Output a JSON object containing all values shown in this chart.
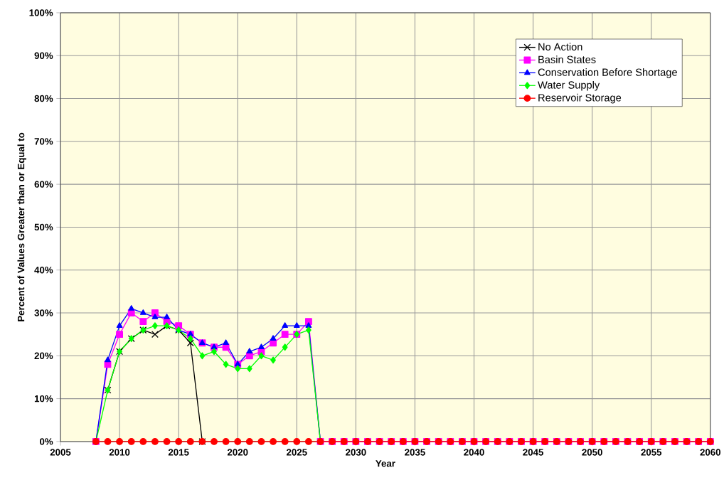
{
  "chart_data": {
    "type": "line",
    "xlabel": "Year",
    "ylabel": "Percent of Values Greater than or Equal to",
    "x": [
      2008,
      2009,
      2010,
      2011,
      2012,
      2013,
      2014,
      2015,
      2016,
      2017,
      2018,
      2019,
      2020,
      2021,
      2022,
      2023,
      2024,
      2025,
      2026,
      2027,
      2028,
      2029,
      2030,
      2031,
      2032,
      2033,
      2034,
      2035,
      2036,
      2037,
      2038,
      2039,
      2040,
      2041,
      2042,
      2043,
      2044,
      2045,
      2046,
      2047,
      2048,
      2049,
      2050,
      2051,
      2052,
      2053,
      2054,
      2055,
      2056,
      2057,
      2058,
      2059,
      2060
    ],
    "series": [
      {
        "name": "No Action",
        "color": "#000000",
        "marker": "cross",
        "values": [
          null,
          12,
          21,
          24,
          26,
          25,
          27,
          26,
          23,
          0,
          null,
          null,
          null,
          null,
          null,
          null,
          null,
          null,
          null,
          null,
          null,
          null,
          null,
          null,
          null,
          null,
          null,
          null,
          null,
          null,
          null,
          null,
          null,
          null,
          null,
          null,
          null,
          null,
          null,
          null,
          null,
          null,
          null,
          null,
          null,
          null,
          null,
          null,
          null,
          null,
          null,
          null,
          null
        ]
      },
      {
        "name": "Basin States",
        "color": "#ff00ff",
        "marker": "square",
        "values": [
          0,
          18,
          25,
          30,
          28,
          30,
          28,
          27,
          25,
          23,
          22,
          22,
          18,
          20,
          21,
          23,
          25,
          25,
          28,
          0,
          0,
          0,
          0,
          0,
          0,
          0,
          0,
          0,
          0,
          0,
          0,
          0,
          0,
          0,
          0,
          0,
          0,
          0,
          0,
          0,
          0,
          0,
          0,
          0,
          0,
          0,
          0,
          0,
          0,
          0,
          0,
          0,
          0
        ]
      },
      {
        "name": "Conservation Before Shortage",
        "color": "#0000ff",
        "marker": "triangle",
        "values": [
          0,
          19,
          27,
          31,
          30,
          29,
          29,
          26,
          25,
          23,
          22,
          23,
          18,
          21,
          22,
          24,
          27,
          27,
          27,
          0,
          null,
          null,
          null,
          null,
          null,
          null,
          null,
          null,
          null,
          null,
          null,
          null,
          null,
          null,
          null,
          null,
          null,
          null,
          null,
          null,
          null,
          null,
          null,
          null,
          null,
          null,
          null,
          null,
          null,
          null,
          null,
          null,
          null
        ]
      },
      {
        "name": "Water Supply",
        "color": "#00ff00",
        "marker": "diamond",
        "values": [
          0,
          12,
          21,
          24,
          26,
          27,
          27,
          26,
          24,
          20,
          21,
          18,
          17,
          17,
          20,
          19,
          22,
          25,
          26,
          0,
          null,
          null,
          null,
          null,
          null,
          null,
          null,
          null,
          null,
          null,
          null,
          null,
          null,
          null,
          null,
          null,
          null,
          null,
          null,
          null,
          null,
          null,
          null,
          null,
          null,
          null,
          null,
          null,
          null,
          null,
          null,
          null,
          null
        ]
      },
      {
        "name": "Reservoir Storage",
        "color": "#ff0000",
        "marker": "circle",
        "values": [
          0,
          0,
          0,
          0,
          0,
          0,
          0,
          0,
          0,
          0,
          0,
          0,
          0,
          0,
          0,
          0,
          0,
          0,
          0,
          0,
          0,
          0,
          0,
          0,
          0,
          0,
          0,
          0,
          0,
          0,
          0,
          0,
          0,
          0,
          0,
          0,
          0,
          0,
          0,
          0,
          0,
          0,
          0,
          0,
          0,
          0,
          0,
          0,
          0,
          0,
          0,
          0,
          0
        ]
      }
    ],
    "xlim": [
      2005,
      2060
    ],
    "xticks": [
      2005,
      2010,
      2015,
      2020,
      2025,
      2030,
      2035,
      2040,
      2045,
      2050,
      2055,
      2060
    ],
    "ylim": [
      0,
      100
    ],
    "yticks": [
      {
        "value": 0,
        "label": "0%"
      },
      {
        "value": 10,
        "label": "10%"
      },
      {
        "value": 20,
        "label": "20%"
      },
      {
        "value": 30,
        "label": "30%"
      },
      {
        "value": 40,
        "label": "40%"
      },
      {
        "value": 50,
        "label": "50%"
      },
      {
        "value": 60,
        "label": "60%"
      },
      {
        "value": 70,
        "label": "70%"
      },
      {
        "value": 80,
        "label": "80%"
      },
      {
        "value": 90,
        "label": "90%"
      },
      {
        "value": 100,
        "label": "100%"
      }
    ],
    "grid": true,
    "legend": "top right",
    "line_style": "solid"
  }
}
